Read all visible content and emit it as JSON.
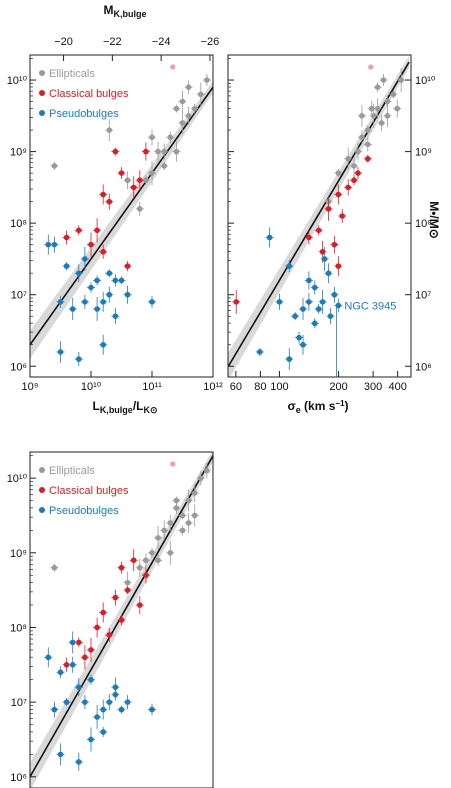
{
  "colors": {
    "ellipticals": "#9a9a9a",
    "classical": "#d5202a",
    "pseudo": "#1f7ab8",
    "fit": "#111111",
    "band": "#d9d9d9",
    "pink": "#f0a0a8"
  },
  "chart_data": [
    {
      "id": "A",
      "type": "scatter",
      "xscale": "log",
      "yscale": "log",
      "xlim": [
        9,
        12
      ],
      "ylim": [
        5.85,
        10.35
      ],
      "xlabel": "L_K,bulge / L_K⊙",
      "top_axis_label": "M_K,bulge",
      "top_ticks": [
        {
          "v": 9.55,
          "t": "−20"
        },
        {
          "v": 10.35,
          "t": "−22"
        },
        {
          "v": 11.15,
          "t": "−24"
        },
        {
          "v": 11.95,
          "t": "−26"
        }
      ],
      "xticks": [
        {
          "v": 9,
          "t": "10⁹"
        },
        {
          "v": 10,
          "t": "10¹⁰"
        },
        {
          "v": 11,
          "t": "10¹¹"
        },
        {
          "v": 12,
          "t": "10¹²"
        }
      ],
      "yticks": [
        {
          "v": 6,
          "t": "10⁶"
        },
        {
          "v": 7,
          "t": "10⁷"
        },
        {
          "v": 8,
          "t": "10⁸"
        },
        {
          "v": 9,
          "t": "10⁹"
        },
        {
          "v": 10,
          "t": "10¹⁰"
        }
      ],
      "legend": [
        "Ellipticals",
        "Classical bulges",
        "Pseudobulges"
      ],
      "fit": [
        [
          9,
          6.3
        ],
        [
          12,
          9.9
        ]
      ],
      "series": [
        {
          "name": "Ellipticals",
          "points": [
            [
              9.4,
              8.8
            ],
            [
              10.3,
              9.3
            ],
            [
              10.6,
              8.6
            ],
            [
              10.8,
              8.2
            ],
            [
              10.9,
              8.6
            ],
            [
              11.0,
              8.7
            ],
            [
              11.1,
              9.0
            ],
            [
              11.2,
              9.0
            ],
            [
              11.3,
              9.2
            ],
            [
              11.4,
              9.6
            ],
            [
              11.5,
              9.4
            ],
            [
              11.6,
              9.5
            ],
            [
              11.6,
              9.9
            ],
            [
              11.7,
              9.6
            ],
            [
              11.8,
              9.8
            ],
            [
              11.4,
              9.0
            ],
            [
              11.0,
              9.2
            ],
            [
              11.9,
              10.0
            ],
            [
              11.2,
              8.8
            ],
            [
              11.5,
              9.7
            ]
          ]
        },
        {
          "name": "Classical bulges",
          "points": [
            [
              9.6,
              7.8
            ],
            [
              9.8,
              7.9
            ],
            [
              10.1,
              7.9
            ],
            [
              10.2,
              8.4
            ],
            [
              10.3,
              8.3
            ],
            [
              10.5,
              8.7
            ],
            [
              10.4,
              9.0
            ],
            [
              10.7,
              8.5
            ],
            [
              10.9,
              9.0
            ],
            [
              10.2,
              7.6
            ],
            [
              10.6,
              7.4
            ],
            [
              10.0,
              7.7
            ],
            [
              10.8,
              8.6
            ]
          ]
        },
        {
          "name": "Pseudobulges",
          "points": [
            [
              9.3,
              7.7
            ],
            [
              9.4,
              7.7
            ],
            [
              9.5,
              6.9
            ],
            [
              9.6,
              7.4
            ],
            [
              9.7,
              6.8
            ],
            [
              9.8,
              7.3
            ],
            [
              9.9,
              6.9
            ],
            [
              10.0,
              7.1
            ],
            [
              10.1,
              6.8
            ],
            [
              10.2,
              6.9
            ],
            [
              10.3,
              7.0
            ],
            [
              10.4,
              7.2
            ],
            [
              10.5,
              7.2
            ],
            [
              9.5,
              6.2
            ],
            [
              10.6,
              7.0
            ],
            [
              9.8,
              6.1
            ],
            [
              10.1,
              7.2
            ],
            [
              9.9,
              7.5
            ],
            [
              10.2,
              6.3
            ],
            [
              10.4,
              6.7
            ],
            [
              11.0,
              6.9
            ],
            [
              10.3,
              7.3
            ]
          ]
        }
      ]
    },
    {
      "id": "B",
      "type": "scatter",
      "xscale": "log",
      "yscale": "log",
      "xlim": [
        1.738,
        2.67
      ],
      "ylim": [
        5.85,
        10.35
      ],
      "xlabel": "σ_e (km s⁻¹)",
      "ylabel": "M•/M⊙",
      "xticks": [
        {
          "v": 1.778,
          "t": "60"
        },
        {
          "v": 1.903,
          "t": "80"
        },
        {
          "v": 2.0,
          "t": "100"
        },
        {
          "v": 2.301,
          "t": "200"
        },
        {
          "v": 2.477,
          "t": "300"
        },
        {
          "v": 2.602,
          "t": "400"
        }
      ],
      "yticks": [
        {
          "v": 6,
          "t": "10⁶"
        },
        {
          "v": 7,
          "t": "10⁷"
        },
        {
          "v": 8,
          "t": "10⁸"
        },
        {
          "v": 9,
          "t": "10⁹"
        },
        {
          "v": 10,
          "t": "10¹⁰"
        }
      ],
      "annotation": {
        "text": "NGC 3945",
        "x": 2.29,
        "y": 6.85
      },
      "fit": [
        [
          1.74,
          6.0
        ],
        [
          2.66,
          10.25
        ]
      ],
      "series": [
        {
          "name": "Ellipticals",
          "points": [
            [
              2.3,
              8.7
            ],
            [
              2.35,
              8.9
            ],
            [
              2.4,
              9.0
            ],
            [
              2.42,
              9.2
            ],
            [
              2.45,
              9.3
            ],
            [
              2.48,
              9.5
            ],
            [
              2.5,
              9.6
            ],
            [
              2.52,
              9.4
            ],
            [
              2.55,
              9.7
            ],
            [
              2.58,
              9.8
            ],
            [
              2.55,
              9.5
            ],
            [
              2.6,
              9.6
            ],
            [
              2.45,
              9.1
            ],
            [
              2.5,
              9.9
            ],
            [
              2.62,
              10.0
            ],
            [
              2.38,
              8.8
            ],
            [
              2.47,
              9.6
            ],
            [
              2.53,
              10.0
            ],
            [
              2.25,
              8.3
            ],
            [
              2.42,
              9.5
            ]
          ]
        },
        {
          "name": "Classical bulges",
          "points": [
            [
              2.15,
              7.8
            ],
            [
              2.2,
              7.9
            ],
            [
              2.25,
              8.2
            ],
            [
              2.3,
              8.4
            ],
            [
              2.35,
              8.5
            ],
            [
              2.4,
              8.7
            ],
            [
              2.45,
              8.9
            ],
            [
              2.22,
              7.6
            ],
            [
              2.28,
              7.7
            ],
            [
              2.32,
              8.1
            ],
            [
              2.38,
              8.6
            ],
            [
              1.78,
              6.9
            ],
            [
              2.3,
              7.4
            ]
          ]
        },
        {
          "name": "Pseudobulges",
          "points": [
            [
              1.95,
              7.8
            ],
            [
              2.0,
              6.9
            ],
            [
              2.05,
              7.4
            ],
            [
              2.08,
              6.7
            ],
            [
              2.12,
              6.8
            ],
            [
              2.15,
              6.9
            ],
            [
              2.18,
              7.1
            ],
            [
              2.2,
              6.8
            ],
            [
              2.22,
              6.9
            ],
            [
              2.25,
              7.3
            ],
            [
              2.28,
              7.0
            ],
            [
              2.1,
              6.4
            ],
            [
              1.9,
              6.2
            ],
            [
              2.05,
              6.1
            ],
            [
              2.15,
              7.2
            ],
            [
              2.3,
              6.85
            ],
            [
              2.18,
              6.6
            ],
            [
              2.23,
              7.5
            ],
            [
              2.12,
              6.3
            ],
            [
              2.26,
              6.7
            ]
          ]
        }
      ]
    },
    {
      "id": "C",
      "type": "scatter",
      "xscale": "log",
      "yscale": "log",
      "xlim": [
        9,
        12
      ],
      "ylim": [
        5.85,
        10.35
      ],
      "yticks": [
        {
          "v": 6,
          "t": "10⁶"
        },
        {
          "v": 7,
          "t": "10⁷"
        },
        {
          "v": 8,
          "t": "10⁸"
        },
        {
          "v": 9,
          "t": "10⁹"
        },
        {
          "v": 10,
          "t": "10¹⁰"
        }
      ],
      "legend": [
        "Ellipticals",
        "Classical bulges",
        "Pseudobulges"
      ],
      "fit": [
        [
          9,
          6.0
        ],
        [
          12,
          10.3
        ]
      ],
      "series": [
        {
          "name": "Ellipticals",
          "points": [
            [
              9.4,
              8.8
            ],
            [
              10.6,
              8.6
            ],
            [
              10.8,
              8.8
            ],
            [
              10.9,
              8.9
            ],
            [
              11.0,
              9.0
            ],
            [
              11.1,
              9.2
            ],
            [
              11.2,
              9.3
            ],
            [
              11.3,
              9.4
            ],
            [
              11.4,
              9.6
            ],
            [
              11.5,
              9.5
            ],
            [
              11.6,
              9.7
            ],
            [
              11.7,
              9.8
            ],
            [
              11.8,
              10.0
            ],
            [
              11.5,
              9.3
            ],
            [
              11.3,
              9.0
            ],
            [
              11.6,
              9.4
            ],
            [
              11.9,
              10.1
            ],
            [
              11.1,
              8.9
            ],
            [
              11.4,
              9.7
            ],
            [
              11.7,
              9.5
            ]
          ]
        },
        {
          "name": "Classical bulges",
          "points": [
            [
              9.6,
              7.5
            ],
            [
              9.8,
              7.8
            ],
            [
              10.0,
              7.7
            ],
            [
              10.2,
              8.2
            ],
            [
              10.4,
              8.4
            ],
            [
              10.5,
              8.8
            ],
            [
              10.6,
              8.5
            ],
            [
              10.7,
              8.9
            ],
            [
              10.8,
              8.3
            ],
            [
              10.3,
              7.9
            ],
            [
              10.5,
              8.1
            ],
            [
              9.9,
              7.6
            ],
            [
              10.1,
              8.0
            ],
            [
              10.9,
              8.7
            ]
          ]
        },
        {
          "name": "Pseudobulges",
          "points": [
            [
              9.3,
              7.6
            ],
            [
              9.4,
              6.9
            ],
            [
              9.5,
              7.4
            ],
            [
              9.6,
              7.0
            ],
            [
              9.7,
              7.8
            ],
            [
              9.8,
              7.2
            ],
            [
              9.9,
              7.0
            ],
            [
              10.0,
              7.3
            ],
            [
              10.1,
              6.8
            ],
            [
              10.2,
              6.9
            ],
            [
              10.3,
              7.0
            ],
            [
              10.4,
              7.1
            ],
            [
              10.5,
              6.9
            ],
            [
              9.5,
              6.3
            ],
            [
              9.8,
              6.2
            ],
            [
              10.6,
              7.0
            ],
            [
              10.2,
              6.6
            ],
            [
              10.0,
              6.5
            ],
            [
              10.4,
              7.2
            ],
            [
              9.7,
              7.5
            ],
            [
              11.0,
              6.9
            ]
          ]
        }
      ]
    }
  ]
}
